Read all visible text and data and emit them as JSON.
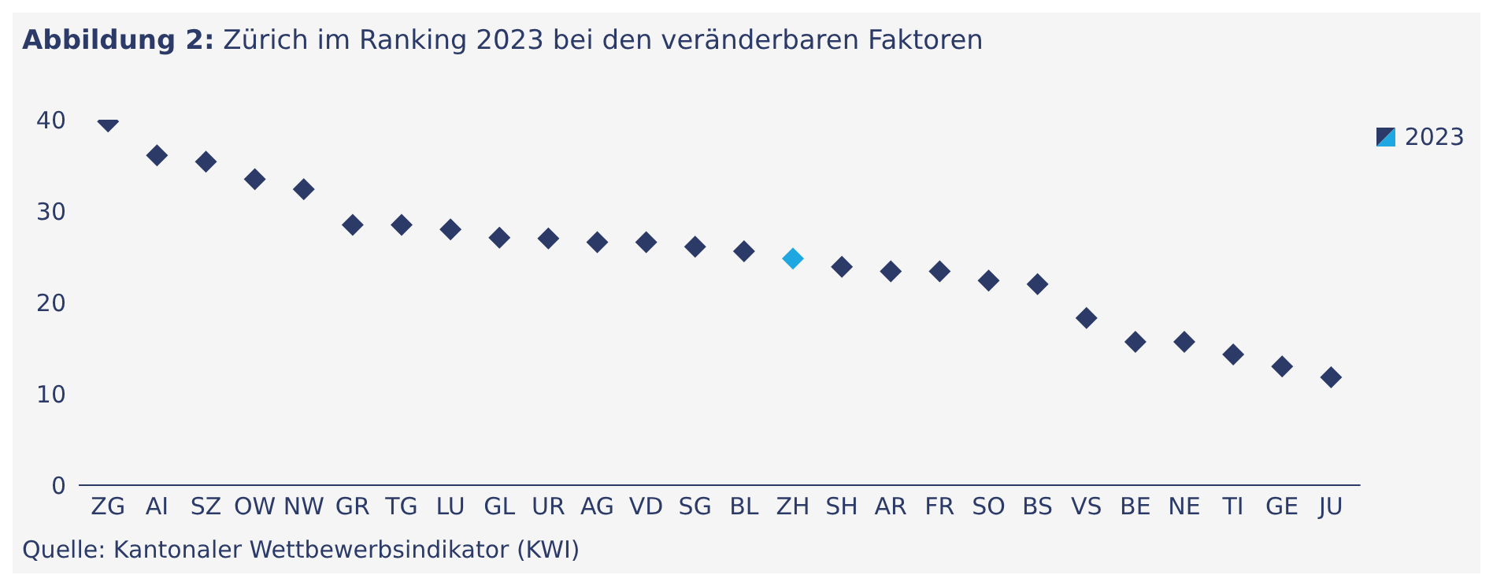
{
  "chart_data": {
    "type": "scatter",
    "title": "Abbildung 2: Zürich im Ranking 2023 bei den veränderbaren Faktoren",
    "annotations": [
      "Quelle: Kantonaler Wettbewerbsindikator (KWI)"
    ],
    "categories": [
      "ZG",
      "AI",
      "SZ",
      "OW",
      "NW",
      "GR",
      "TG",
      "LU",
      "GL",
      "UR",
      "AG",
      "VD",
      "SG",
      "BL",
      "ZH",
      "SH",
      "AR",
      "FR",
      "SO",
      "BS",
      "VS",
      "BE",
      "NE",
      "TI",
      "GE",
      "JU"
    ],
    "series": [
      {
        "name": "2023",
        "color": "#2b3a67",
        "values": [
          39.8,
          36.1,
          35.4,
          33.5,
          32.4,
          28.5,
          28.5,
          28.0,
          27.1,
          27.0,
          26.6,
          26.6,
          26.1,
          25.6,
          24.8,
          23.9,
          23.4,
          23.4,
          22.4,
          22.0,
          18.3,
          15.7,
          15.7,
          14.3,
          13.0,
          11.8
        ],
        "colors": [
          "#2b3a67",
          "#2b3a67",
          "#2b3a67",
          "#2b3a67",
          "#2b3a67",
          "#2b3a67",
          "#2b3a67",
          "#2b3a67",
          "#2b3a67",
          "#2b3a67",
          "#2b3a67",
          "#2b3a67",
          "#2b3a67",
          "#2b3a67",
          "#1ea7e1",
          "#2b3a67",
          "#2b3a67",
          "#2b3a67",
          "#2b3a67",
          "#2b3a67",
          "#2b3a67",
          "#2b3a67",
          "#2b3a67",
          "#2b3a67",
          "#2b3a67",
          "#2b3a67"
        ]
      }
    ],
    "ylim": [
      0,
      40
    ],
    "yticks": [
      0,
      10,
      20,
      30,
      40
    ],
    "grid": false,
    "legend": "right",
    "marker": "diamond"
  }
}
